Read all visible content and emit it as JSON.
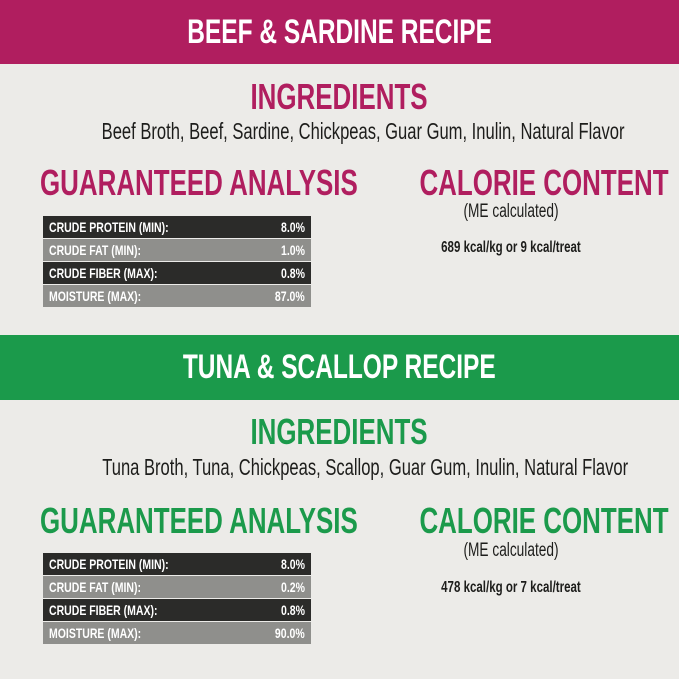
{
  "colors": {
    "beef": "#b01e5f",
    "tuna": "#1b9a4b",
    "background": "#ecebe8"
  },
  "recipes": [
    {
      "title": "BEEF & SARDINE RECIPE",
      "ingredients_heading": "INGREDIENTS",
      "ingredients": "Beef Broth, Beef, Sardine, Chickpeas, Guar Gum, Inulin, Natural Flavor",
      "analysis_heading": "GUARANTEED ANALYSIS",
      "analysis": [
        {
          "label": "CRUDE PROTEIN (MIN):",
          "value": "8.0%"
        },
        {
          "label": "CRUDE FAT (MIN):",
          "value": "1.0%"
        },
        {
          "label": "CRUDE FIBER (MAX):",
          "value": "0.8%"
        },
        {
          "label": "MOISTURE (MAX):",
          "value": "87.0%"
        }
      ],
      "calorie_heading": "CALORIE CONTENT",
      "calorie_note": "(ME calculated)",
      "calorie_value": "689 kcal/kg or 9 kcal/treat"
    },
    {
      "title": "TUNA & SCALLOP RECIPE",
      "ingredients_heading": "INGREDIENTS",
      "ingredients": "Tuna Broth, Tuna, Chickpeas, Scallop, Guar Gum, Inulin, Natural Flavor",
      "analysis_heading": "GUARANTEED ANALYSIS",
      "analysis": [
        {
          "label": "CRUDE PROTEIN (MIN):",
          "value": "8.0%"
        },
        {
          "label": "CRUDE FAT (MIN):",
          "value": "0.2%"
        },
        {
          "label": "CRUDE FIBER (MAX):",
          "value": "0.8%"
        },
        {
          "label": "MOISTURE (MAX):",
          "value": "90.0%"
        }
      ],
      "calorie_heading": "CALORIE CONTENT",
      "calorie_note": "(ME calculated)",
      "calorie_value": "478 kcal/kg or 7 kcal/treat"
    }
  ]
}
